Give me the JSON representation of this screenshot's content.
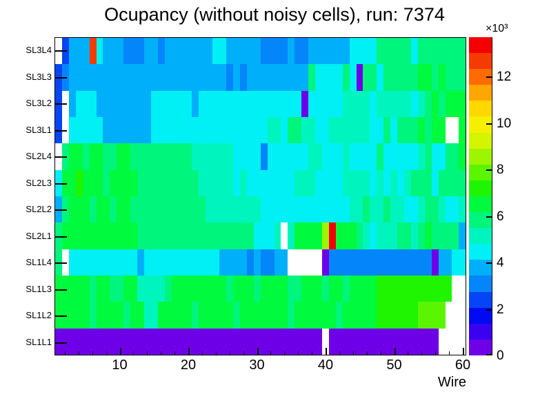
{
  "title": "Ocupancy (without noisy cells), run: 7374",
  "colors": {
    "background": "#FFFFFF",
    "frame": "#000000",
    "empty_bin": "#FFFFFF"
  },
  "chart_data": {
    "type": "heatmap",
    "title": "Ocupancy (without noisy cells), run: 7374",
    "x_label": "Wire",
    "x_range": [
      1,
      60
    ],
    "x_major_ticks": [
      10,
      20,
      30,
      40,
      50,
      60
    ],
    "x_minor_tick_step": 2,
    "y_rows_top_to_bottom": [
      "SL3L4",
      "SL3L3",
      "SL3L2",
      "SL3L1",
      "SL2L4",
      "SL2L3",
      "SL2L2",
      "SL2L1",
      "SL1L4",
      "SL1L3",
      "SL1L2",
      "SL1L1"
    ],
    "z_scale": {
      "exponent_label": "×10³",
      "ticks": [
        0,
        2,
        4,
        6,
        8,
        10,
        12
      ],
      "max_x1000": 13.7,
      "n_bands": 20
    },
    "palette_bands_low_to_high": [
      "#6E00E8",
      "#3A00F0",
      "#0009F2",
      "#0545F5",
      "#0585FA",
      "#00AFFA",
      "#00F0F5",
      "#00F5BE",
      "#00F57D",
      "#00FA3D",
      "#1FF500",
      "#5CF500",
      "#9EF500",
      "#D4F500",
      "#F5F000",
      "#FFD800",
      "#FFA600",
      "#FF6B00",
      "#F53C00",
      "#F50000"
    ],
    "code_to_band": {
      "W": 0,
      "P": 1,
      "V": 2,
      "B": 3,
      "b": 4,
      "D": 5,
      "S": 6,
      "C": 7,
      "T": 8,
      "G": 9,
      "g": 10,
      "L": 11,
      "M": 12,
      "Y": 13,
      "y": 14,
      "X": 15,
      "O": 16,
      "o": 17,
      "R": 18,
      "r": 19,
      "Q": 20
    },
    "code_values_x1000": {
      "W": null,
      "P": 0.3,
      "V": 1.0,
      "B": 1.7,
      "b": 2.4,
      "D": 3.1,
      "S": 3.8,
      "C": 4.5,
      "T": 5.1,
      "G": 5.8,
      "g": 6.5,
      "L": 7.2,
      "M": 7.9,
      "Y": 8.6,
      "y": 9.2,
      "X": 9.9,
      "O": 10.6,
      "o": 11.3,
      "R": 12.0,
      "r": 12.7,
      "Q": 13.4
    },
    "rows": [
      {
        "label": "SL3L4",
        "cells": "WbSSSrCSSSDDDSSDSSSSSSSCCSSSSSDDDDSDDSSSSSSCCCCGGGGGCGGGGGGG"
      },
      {
        "label": "SL3L3",
        "cells": "bDSSSSSSSSSSSSSSSSSSSSSSSDSDSSSSSSSSSGCCCCGCPGGCGGGGGggGgGGG"
      },
      {
        "label": "SL3L2",
        "cells": "bWSCCCSSSSSSSSCCCCCCSCCCCCCCCCCCCCCCPCCCCCTTTTCTTTTTCTGgGggg"
      },
      {
        "label": "SL3L1",
        "cells": "bWCCCCCSSSSSSSCCCCCCCCCCCCCCCCCTTCGGTTCCTTTTTTCCGCGGGgGggWWg"
      },
      {
        "label": "SL2L4",
        "cells": "WGggGggGGggGGGGGGGGGTTTTTTCCCCDCCCCCCTTCCCTCCCCGCCCCCTGCCGGg"
      },
      {
        "label": "SL2L3",
        "cells": "CggLgggGggggGGGGGGGGGTTTTTCTCCCCCCCTTTCCCCTTTTCTCTCTGGGCGGGG"
      },
      {
        "label": "SL2L2",
        "cells": "SGgggGggGggGGGGGGGGGGGTTTTTTTTCCCCCCCCCCCCCTTGTTGTTCCTGGTCCT"
      },
      {
        "label": "SL2L1",
        "cells": "GgggggggggggGGGGGGGGGGGGGGGGGCCCTWTggggYQgggGTCTTTGGTGgGGGGS"
      },
      {
        "label": "SL1L4",
        "cells": "GWCCCCCCCCCCSCCCCCCCCCCCSSSSDSDDSSWWWWWPDDDDDDDDDDDDDDDPSSCC"
      },
      {
        "label": "SL1L3",
        "cells": "gggggGggGGggTTTTGggggggggGgggGggggGGgggGggGggggLLLLLLLLLLLWW"
      },
      {
        "label": "SL1L2",
        "cells": "gggggGggggGggTTgggggGgggggGgggggggGggggggGgggggLLLLLLMMMMWWW"
      },
      {
        "label": "SL1L1",
        "cells": "PPPPPPPPPPPPPPPPPPPPPPPPPPPPPPPPPPPPPPPWPPPPPPPPPPPPPPPPWWWW"
      }
    ]
  }
}
